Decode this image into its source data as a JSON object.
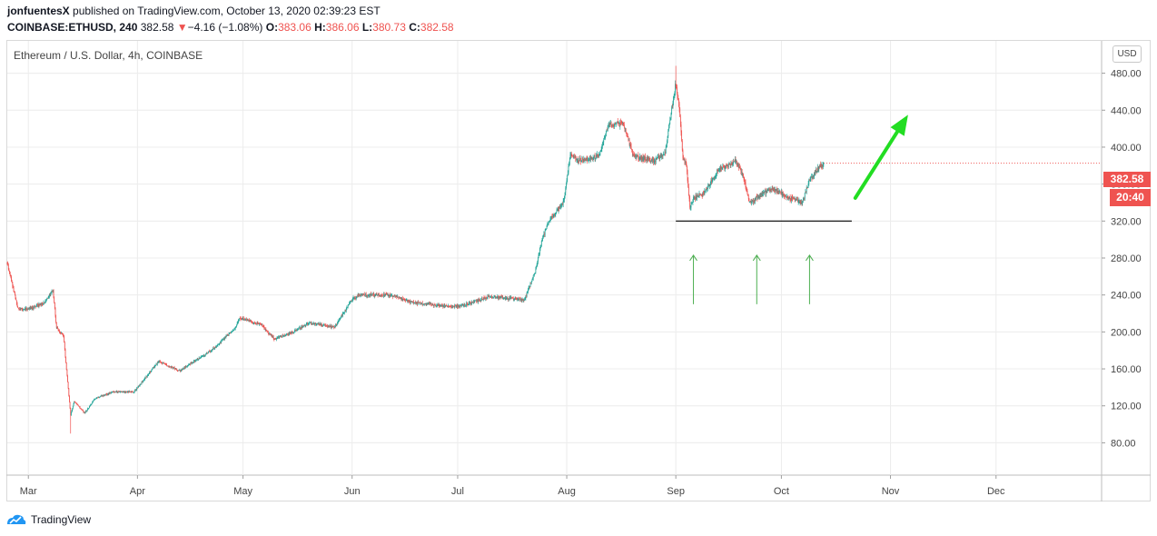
{
  "header": {
    "user": "jonfuentesX",
    "published": "published on TradingView.com, October 13, 2020 02:39:23 EST",
    "symbol": "COINBASE:ETHUSD, 240",
    "last": "382.58",
    "arrow": "▼",
    "change": "−4.16 (−1.08%)",
    "o_label": "O:",
    "o_val": "383.06",
    "h_label": "H:",
    "h_val": "386.06",
    "l_label": "L:",
    "l_val": "380.73",
    "c_label": "C:",
    "c_val": "382.58"
  },
  "legend": "Ethereum / U.S. Dollar, 4h, COINBASE",
  "currency_button": "USD",
  "price_tag": "382.58",
  "time_tag": "20:40",
  "brand": "TradingView",
  "colors": {
    "up": "#26a69a",
    "down": "#ef5350",
    "grid": "#ececec",
    "annotation": "#4caf50",
    "big_arrow": "#22dd22",
    "support": "#000000"
  },
  "chart_data": {
    "type": "candlestick",
    "symbol": "ETHUSD",
    "interval": "4h",
    "y_axis": {
      "ticks": [
        80,
        120,
        160,
        200,
        240,
        280,
        320,
        360,
        400,
        440,
        480
      ],
      "range": [
        45,
        515
      ]
    },
    "x_axis": {
      "labels": [
        "Mar",
        "Apr",
        "May",
        "Jun",
        "Jul",
        "Aug",
        "Sep",
        "Oct",
        "Nov",
        "Dec"
      ],
      "start": "2020-02-24",
      "end": "2020-12-31"
    },
    "price_path": [
      [
        "2020-02-24",
        275
      ],
      [
        "2020-02-27",
        225
      ],
      [
        "2020-03-01",
        225
      ],
      [
        "2020-03-05",
        230
      ],
      [
        "2020-03-08",
        245
      ],
      [
        "2020-03-09",
        205
      ],
      [
        "2020-03-11",
        195
      ],
      [
        "2020-03-13",
        110
      ],
      [
        "2020-03-14",
        125
      ],
      [
        "2020-03-17",
        112
      ],
      [
        "2020-03-20",
        128
      ],
      [
        "2020-03-25",
        135
      ],
      [
        "2020-03-31",
        135
      ],
      [
        "2020-04-07",
        168
      ],
      [
        "2020-04-13",
        158
      ],
      [
        "2020-04-22",
        180
      ],
      [
        "2020-04-29",
        205
      ],
      [
        "2020-04-30",
        215
      ],
      [
        "2020-05-06",
        208
      ],
      [
        "2020-05-10",
        192
      ],
      [
        "2020-05-15",
        200
      ],
      [
        "2020-05-20",
        210
      ],
      [
        "2020-05-27",
        205
      ],
      [
        "2020-06-01",
        235
      ],
      [
        "2020-06-03",
        240
      ],
      [
        "2020-06-12",
        240
      ],
      [
        "2020-06-18",
        232
      ],
      [
        "2020-06-27",
        228
      ],
      [
        "2020-07-02",
        228
      ],
      [
        "2020-07-10",
        238
      ],
      [
        "2020-07-20",
        235
      ],
      [
        "2020-07-23",
        265
      ],
      [
        "2020-07-25",
        300
      ],
      [
        "2020-07-27",
        320
      ],
      [
        "2020-07-31",
        340
      ],
      [
        "2020-08-02",
        392
      ],
      [
        "2020-08-04",
        385
      ],
      [
        "2020-08-10",
        390
      ],
      [
        "2020-08-13",
        425
      ],
      [
        "2020-08-17",
        425
      ],
      [
        "2020-08-20",
        390
      ],
      [
        "2020-08-26",
        385
      ],
      [
        "2020-08-29",
        395
      ],
      [
        "2020-09-01",
        470
      ],
      [
        "2020-09-02",
        440
      ],
      [
        "2020-09-03",
        390
      ],
      [
        "2020-09-04",
        380
      ],
      [
        "2020-09-05",
        335
      ],
      [
        "2020-09-06",
        345
      ],
      [
        "2020-09-09",
        350
      ],
      [
        "2020-09-13",
        375
      ],
      [
        "2020-09-18",
        385
      ],
      [
        "2020-09-20",
        370
      ],
      [
        "2020-09-22",
        340
      ],
      [
        "2020-09-24",
        345
      ],
      [
        "2020-09-28",
        355
      ],
      [
        "2020-10-01",
        350
      ],
      [
        "2020-10-03",
        345
      ],
      [
        "2020-10-07",
        340
      ],
      [
        "2020-10-09",
        365
      ],
      [
        "2020-10-11",
        375
      ],
      [
        "2020-10-13",
        382.58
      ]
    ],
    "extremes": {
      "high": [
        "2020-09-01",
        488
      ],
      "low": [
        "2020-03-13",
        90
      ]
    },
    "annotations": {
      "support_line": {
        "value": 320,
        "from": "2020-09-01",
        "to": "2020-10-21"
      },
      "up_arrows": [
        {
          "date": "2020-09-06",
          "from": 230,
          "to": 283
        },
        {
          "date": "2020-09-24",
          "from": 230,
          "to": 283
        },
        {
          "date": "2020-10-09",
          "from": 230,
          "to": 283
        }
      ],
      "big_arrow": {
        "from": [
          "2020-10-22",
          345
        ],
        "to": [
          "2020-11-06",
          435
        ]
      }
    }
  }
}
